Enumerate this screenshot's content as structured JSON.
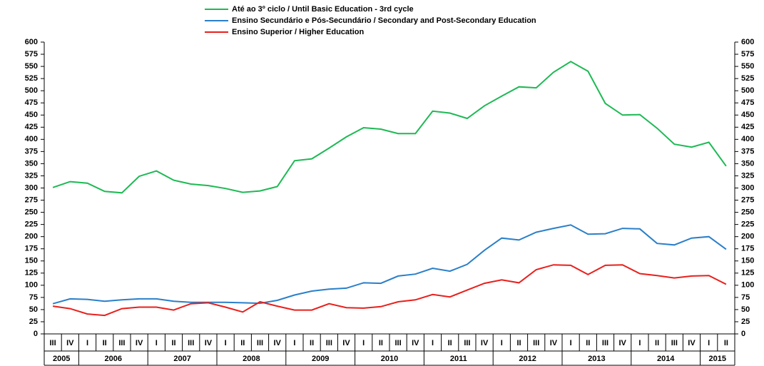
{
  "chart_data": {
    "type": "line",
    "categories": [
      "III",
      "IV",
      "I",
      "II",
      "III",
      "IV",
      "I",
      "II",
      "III",
      "IV",
      "I",
      "II",
      "III",
      "IV",
      "I",
      "II",
      "III",
      "IV",
      "I",
      "II",
      "III",
      "IV",
      "I",
      "II",
      "III",
      "IV",
      "I",
      "II",
      "III",
      "IV",
      "I",
      "II",
      "III",
      "IV",
      "I",
      "II",
      "III",
      "IV",
      "I",
      "II"
    ],
    "years": [
      "2005",
      "2006",
      "2007",
      "2008",
      "2009",
      "2010",
      "2011",
      "2012",
      "2013",
      "2014",
      "2015"
    ],
    "series": [
      {
        "name": "Até ao 3º ciclo / Until Basic Education - 3rd cycle",
        "color": "#1db954",
        "values": [
          301,
          313,
          310,
          293,
          290,
          324,
          335,
          316,
          308,
          305,
          299,
          291,
          294,
          303,
          356,
          360,
          382,
          405,
          424,
          421,
          412,
          412,
          458,
          454,
          443,
          469,
          489,
          508,
          506,
          538,
          560,
          540,
          474,
          450,
          451,
          423,
          390,
          384,
          394,
          345
        ]
      },
      {
        "name": "Ensino Secundário e Pós-Secundário / Secondary and Post-Secondary Education",
        "color": "#2a7fc9",
        "values": [
          62,
          72,
          71,
          67,
          70,
          72,
          72,
          67,
          65,
          65,
          65,
          64,
          63,
          69,
          80,
          88,
          92,
          94,
          105,
          104,
          119,
          123,
          135,
          129,
          143,
          172,
          197,
          193,
          209,
          217,
          224,
          205,
          206,
          217,
          216,
          186,
          183,
          197,
          200,
          174
        ]
      },
      {
        "name": "Ensino Superior / Higher Education",
        "color": "#e8201c",
        "values": [
          57,
          52,
          41,
          38,
          52,
          55,
          55,
          49,
          62,
          64,
          55,
          45,
          66,
          57,
          49,
          49,
          62,
          54,
          53,
          56,
          66,
          70,
          81,
          76,
          90,
          104,
          111,
          105,
          132,
          142,
          141,
          122,
          141,
          142,
          124,
          120,
          115,
          119,
          120,
          102
        ]
      }
    ],
    "ylim": [
      0,
      600
    ],
    "yticks": [
      0,
      25,
      50,
      75,
      100,
      125,
      150,
      175,
      200,
      225,
      250,
      275,
      300,
      325,
      350,
      375,
      400,
      425,
      450,
      475,
      500,
      525,
      550,
      575,
      600
    ],
    "y2lim": [
      0,
      600
    ],
    "y2ticks": [
      0,
      25,
      50,
      75,
      100,
      125,
      150,
      175,
      200,
      225,
      250,
      275,
      300,
      325,
      350,
      375,
      400,
      425,
      450,
      475,
      500,
      525,
      550,
      575,
      600
    ],
    "legend": "top"
  }
}
